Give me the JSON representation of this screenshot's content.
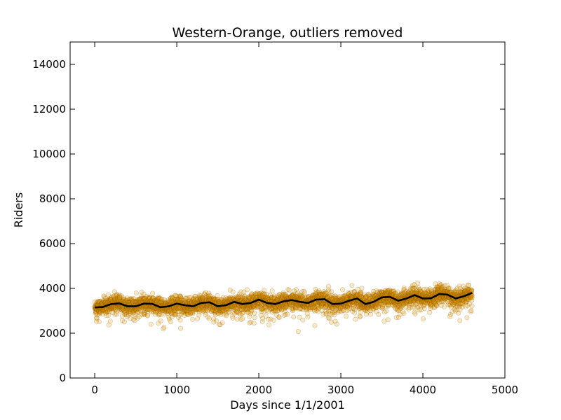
{
  "chart_data": {
    "type": "scatter",
    "title": "Western-Orange, outliers removed",
    "xlabel": "Days since 1/1/2001",
    "ylabel": "Riders",
    "xlim": [
      -300,
      5000
    ],
    "ylim": [
      0,
      15000
    ],
    "x_ticks": [
      0,
      1000,
      2000,
      3000,
      4000,
      5000
    ],
    "y_ticks": [
      0,
      2000,
      4000,
      6000,
      8000,
      10000,
      12000,
      14000
    ],
    "grid": false,
    "legend": "none",
    "series": [
      {
        "kind": "scatter",
        "color": "#e89a00",
        "edge_color": "#8a5a00",
        "x_range": [
          0,
          4600
        ],
        "count": 4400,
        "typical_range": [
          2600,
          4200
        ],
        "description_of_shape": "daily ridership points scattered around the smoothed trend with spread of roughly ±300"
      },
      {
        "kind": "line",
        "color": "#000000",
        "x": [
          0,
          100,
          200,
          300,
          400,
          500,
          600,
          700,
          800,
          900,
          1000,
          1100,
          1200,
          1300,
          1400,
          1500,
          1600,
          1700,
          1800,
          1900,
          2000,
          2100,
          2200,
          2300,
          2400,
          2500,
          2600,
          2700,
          2800,
          2900,
          3000,
          3100,
          3200,
          3300,
          3400,
          3500,
          3600,
          3700,
          3800,
          3900,
          4000,
          4100,
          4200,
          4300,
          4400,
          4500,
          4600
        ],
        "y": [
          3150,
          3170,
          3300,
          3330,
          3200,
          3200,
          3320,
          3310,
          3160,
          3200,
          3320,
          3250,
          3200,
          3350,
          3380,
          3200,
          3250,
          3400,
          3300,
          3350,
          3500,
          3350,
          3300,
          3420,
          3480,
          3400,
          3350,
          3500,
          3520,
          3300,
          3320,
          3450,
          3550,
          3300,
          3400,
          3600,
          3620,
          3450,
          3550,
          3700,
          3550,
          3560,
          3750,
          3720,
          3550,
          3650,
          3800
        ]
      }
    ]
  }
}
